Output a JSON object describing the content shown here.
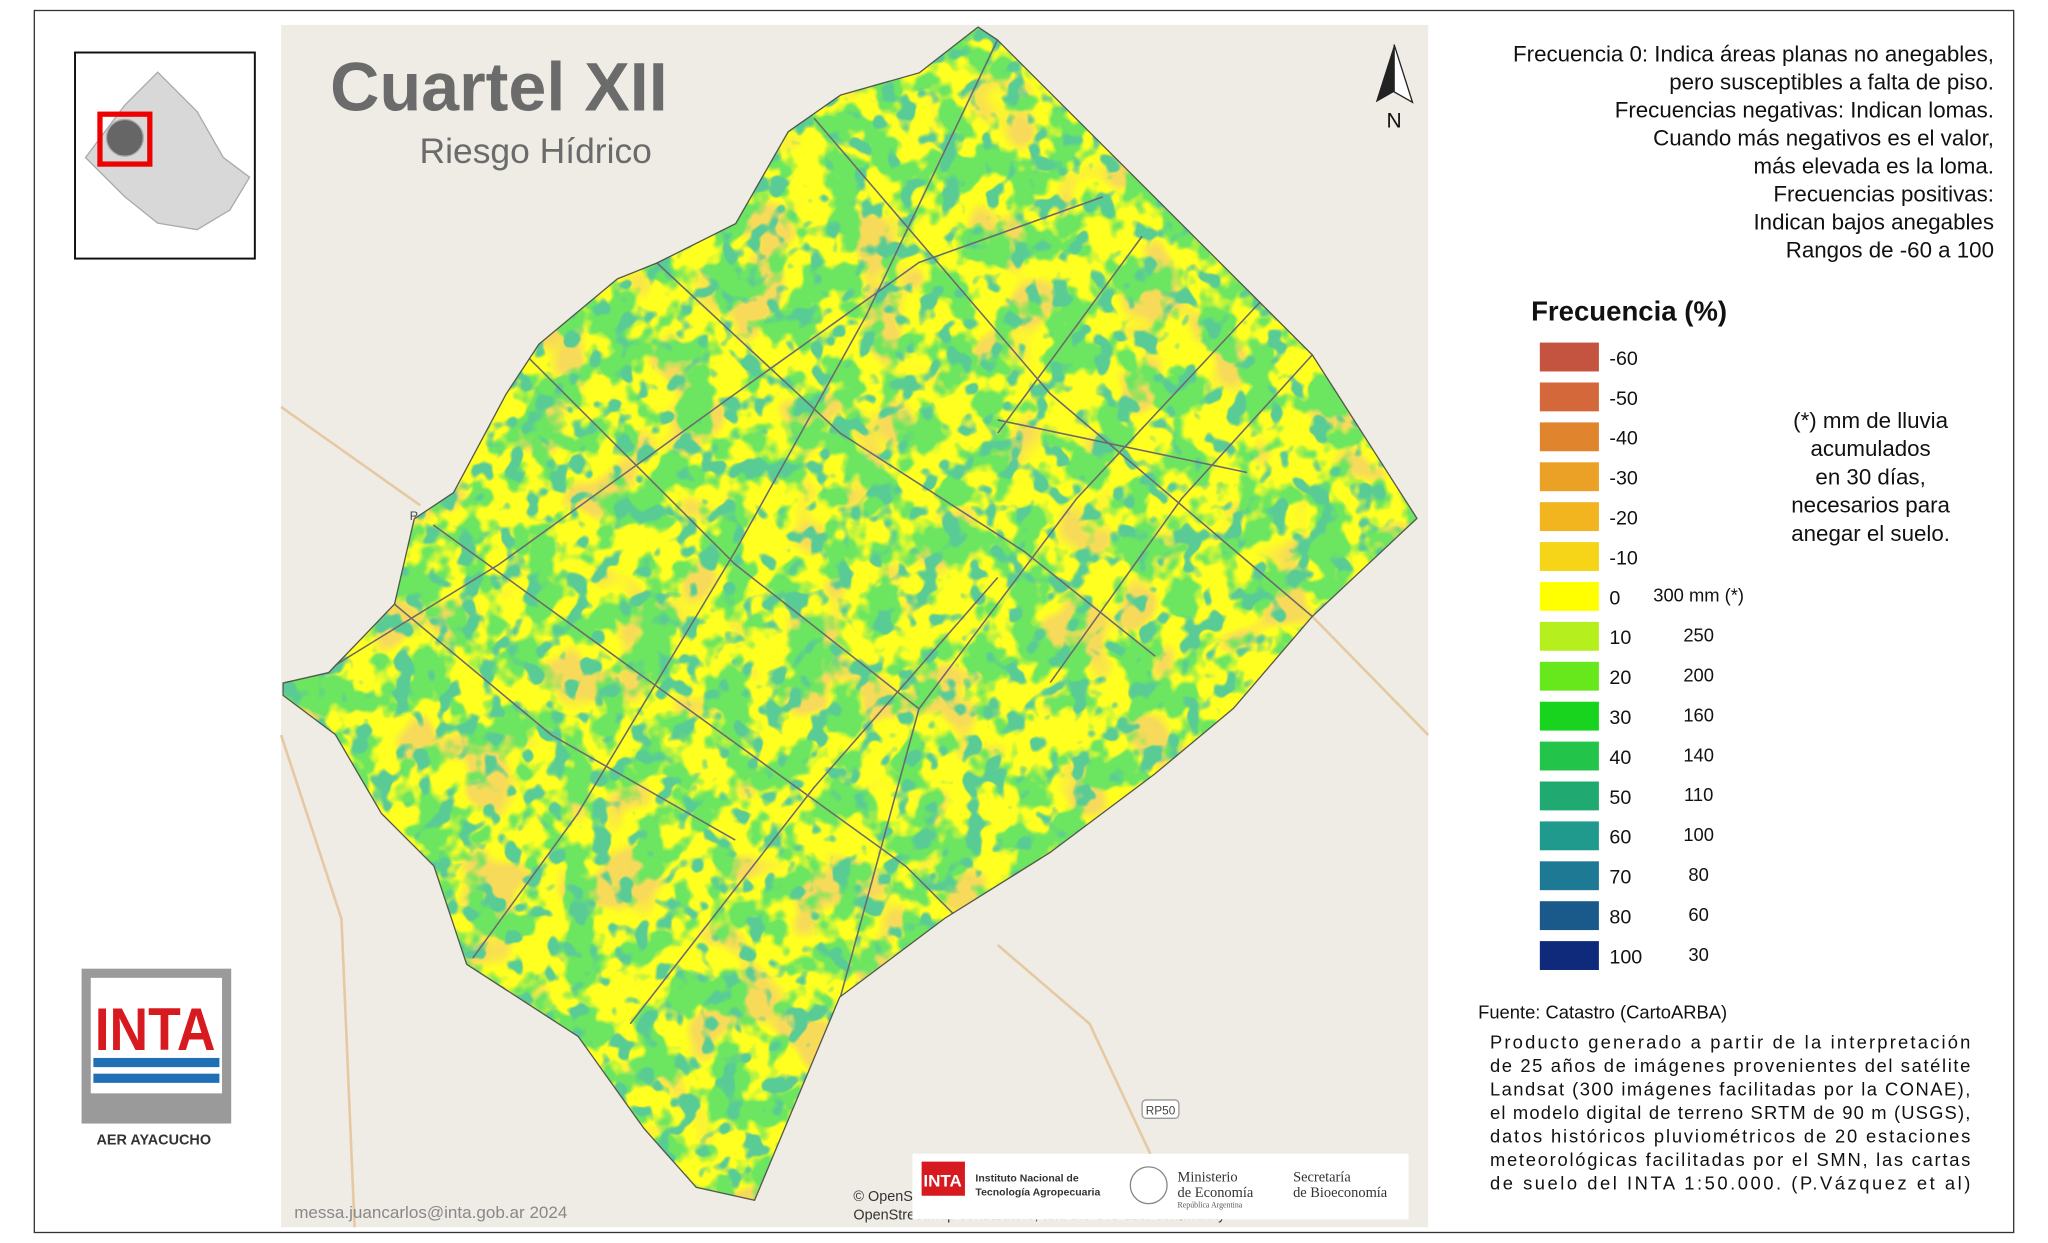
{
  "header": {
    "title": "Cuartel XII",
    "subtitle": "Riesgo Hídrico"
  },
  "north": "N",
  "description": [
    "Frecuencia 0: Indica áreas planas no anegables,",
    "pero susceptibles a falta de piso.",
    "Frecuencias negativas: Indican lomas.",
    "Cuando más negativos es el valor,",
    "más elevada es la loma.",
    "Frecuencias positivas:",
    "Indican bajos anegables",
    "Rangos de -60 a 100"
  ],
  "legend": {
    "title": "Frecuencia (%)",
    "items": [
      {
        "label": "-60",
        "color": "#c4533f"
      },
      {
        "label": "-50",
        "color": "#d4683a"
      },
      {
        "label": "-40",
        "color": "#e0852e"
      },
      {
        "label": "-30",
        "color": "#eba126"
      },
      {
        "label": "-20",
        "color": "#f2b520"
      },
      {
        "label": "-10",
        "color": "#f6d418"
      },
      {
        "label": "0",
        "mm": "300 mm (*)",
        "color": "#ffff00"
      },
      {
        "label": "10",
        "mm": "250",
        "color": "#b5f01e"
      },
      {
        "label": "20",
        "mm": "200",
        "color": "#66e81c"
      },
      {
        "label": "30",
        "mm": "160",
        "color": "#19d41e"
      },
      {
        "label": "40",
        "mm": "140",
        "color": "#22c44a"
      },
      {
        "label": "50",
        "mm": "110",
        "color": "#20aa72"
      },
      {
        "label": "60",
        "mm": "100",
        "color": "#219a8e"
      },
      {
        "label": "70",
        "mm": "80",
        "color": "#1e7a94"
      },
      {
        "label": "80",
        "mm": "60",
        "color": "#1a5a8a"
      },
      {
        "label": "100",
        "mm": "30",
        "color": "#0f2a7a"
      }
    ]
  },
  "note": [
    "(*) mm de lluvia",
    "acumulados",
    "en 30 días,",
    "necesarios para",
    "anegar el suelo."
  ],
  "source": "Fuente: Catastro (CartoARBA)",
  "product": [
    "Producto generado a partir de la interpretación",
    "de 25 años de imágenes provenientes del satélite",
    "Landsat (300 imágenes facilitadas por la CONAE),",
    "el modelo digital de terreno SRTM de 90 m (USGS),",
    "datos históricos pluviométricos de 20 estaciones",
    "meteorológicas facilitadas por el SMN,  las cartas",
    "de suelo del INTA 1:50.000. (P.Vázquez et al)"
  ],
  "logo": {
    "name": "INTA",
    "office": "AER AYACUCHO"
  },
  "credit": "messa.juancarlos@inta.gob.ar 2024",
  "attribution": [
    "© OpenS",
    "OpenStreetMap contributors, and the GIS user community"
  ],
  "roads": [
    "RP50",
    "R"
  ],
  "footer_logos": {
    "inta": "INTA",
    "inta_name": [
      "Instituto Nacional de",
      "Tecnología Agropecuaria"
    ],
    "ministry": [
      "Ministerio",
      "de Economía",
      "República Argentina"
    ],
    "secretariat": [
      "Secretaría",
      "de Bioeconomía"
    ]
  }
}
